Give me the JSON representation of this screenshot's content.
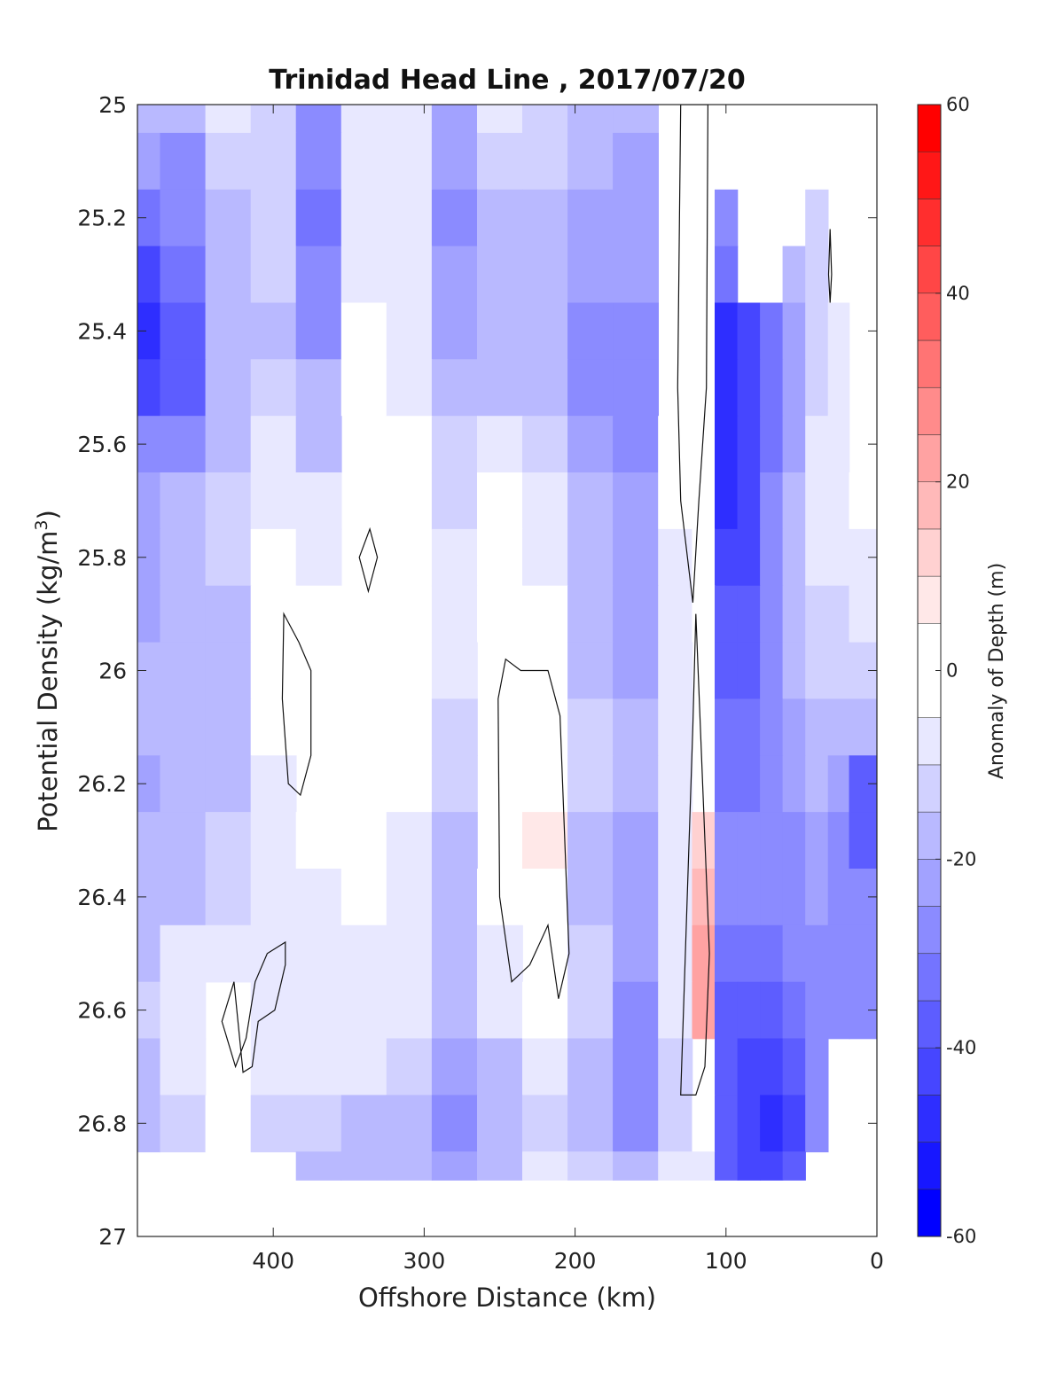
{
  "chart_data": {
    "type": "heatmap",
    "title": "Trinidad Head Line , 2017/07/20",
    "xlabel": "Offshore Distance (km)",
    "ylabel": "Potential Density (kg/m3)",
    "ylabel_main": "Potential Density (kg/m",
    "ylabel_sup": "3",
    "ylabel_close": ")",
    "xlim": [
      490,
      0
    ],
    "ylim": [
      25,
      27
    ],
    "y_reversed": true,
    "x_ticks": [
      400,
      300,
      200,
      100,
      0
    ],
    "x_tick_labels": [
      "400",
      "300",
      "200",
      "100",
      "0"
    ],
    "y_ticks": [
      25,
      25.2,
      25.4,
      25.6,
      25.8,
      26,
      26.2,
      26.4,
      26.6,
      26.8,
      27
    ],
    "y_tick_labels": [
      "25",
      "25.2",
      "25.4",
      "25.6",
      "25.8",
      "26",
      "26.2",
      "26.4",
      "26.6",
      "26.8",
      "27"
    ],
    "colorbar": {
      "label": "Anomaly of Depth (m)",
      "range": [
        -60,
        60
      ],
      "ticks": [
        60,
        40,
        20,
        0,
        -20,
        -40,
        -60
      ],
      "tick_labels": [
        "60",
        "40",
        "20",
        "0",
        "-20",
        "-40",
        "-60"
      ],
      "levels": [
        -60,
        -55,
        -50,
        -45,
        -40,
        -35,
        -30,
        -25,
        -20,
        -15,
        -10,
        -5,
        5,
        10,
        15,
        20,
        25,
        30,
        35,
        40,
        45,
        50,
        55,
        60
      ],
      "low_color": "#0000ff",
      "mid_color": "#ffffff",
      "high_color": "#ff0000"
    },
    "x": [
      490,
      460,
      430,
      400,
      370,
      340,
      310,
      280,
      250,
      220,
      190,
      160,
      130,
      115,
      100,
      85,
      70,
      55,
      40,
      25,
      12
    ],
    "y": [
      25,
      25.1,
      25.2,
      25.3,
      25.4,
      25.5,
      25.6,
      25.7,
      25.8,
      25.9,
      26,
      26.1,
      26.2,
      26.3,
      26.4,
      26.5,
      26.6,
      26.7,
      26.8,
      26.9
    ],
    "z": [
      [
        -20,
        -20,
        -10,
        -12,
        -28,
        -8,
        -5,
        -22,
        -10,
        -12,
        -18,
        -20,
        0,
        0,
        0,
        0,
        0,
        0,
        0,
        0,
        0
      ],
      [
        -25,
        -28,
        -12,
        -14,
        -30,
        -8,
        -6,
        -24,
        -12,
        -14,
        -20,
        -22,
        0,
        0,
        0,
        0,
        0,
        0,
        0,
        0,
        0
      ],
      [
        -32,
        -30,
        -16,
        -15,
        -32,
        -6,
        -8,
        -26,
        -16,
        -16,
        -22,
        -22,
        0,
        0,
        -30,
        0,
        0,
        0,
        -14,
        0,
        0
      ],
      [
        -42,
        -34,
        -20,
        -15,
        -28,
        -8,
        -10,
        -24,
        -18,
        -18,
        -24,
        -24,
        0,
        0,
        -32,
        0,
        0,
        -20,
        -14,
        0,
        0
      ],
      [
        -48,
        -38,
        -20,
        -16,
        -26,
        -4,
        -10,
        -22,
        -18,
        -18,
        -26,
        -26,
        0,
        0,
        -48,
        -42,
        -34,
        -22,
        -12,
        -8,
        0
      ],
      [
        -44,
        -36,
        -18,
        -12,
        -20,
        -2,
        -6,
        -18,
        -16,
        -18,
        -26,
        -26,
        0,
        0,
        -50,
        -44,
        -34,
        -22,
        -12,
        -8,
        0
      ],
      [
        -30,
        -26,
        -16,
        -10,
        -16,
        0,
        -2,
        -14,
        -10,
        -14,
        -24,
        -26,
        -2,
        0,
        -48,
        -44,
        -32,
        -22,
        -10,
        -8,
        0
      ],
      [
        -22,
        -20,
        -14,
        -6,
        -10,
        0,
        0,
        -12,
        -4,
        -8,
        -20,
        -22,
        -4,
        0,
        -46,
        -44,
        -30,
        -20,
        -10,
        -8,
        -4
      ],
      [
        -22,
        -20,
        -14,
        -4,
        -6,
        0,
        0,
        -10,
        -4,
        -6,
        -20,
        -22,
        -6,
        -2,
        -44,
        -42,
        -30,
        -20,
        -10,
        -10,
        -6
      ],
      [
        -22,
        -20,
        -16,
        -4,
        -4,
        0,
        0,
        -10,
        -2,
        -4,
        -18,
        -22,
        -6,
        -2,
        -40,
        -40,
        -30,
        -20,
        -12,
        -12,
        -8
      ],
      [
        -18,
        -20,
        -16,
        -4,
        0,
        0,
        0,
        -10,
        0,
        0,
        -16,
        -22,
        -6,
        0,
        -36,
        -36,
        -30,
        -20,
        -14,
        -14,
        -14
      ],
      [
        -20,
        -20,
        -16,
        -4,
        0,
        0,
        -2,
        -12,
        0,
        0,
        -14,
        -20,
        -6,
        0,
        -34,
        -34,
        -30,
        -22,
        -16,
        -18,
        -20
      ],
      [
        -22,
        -20,
        -16,
        -6,
        0,
        0,
        -4,
        -14,
        0,
        0,
        -14,
        -20,
        -6,
        0,
        -32,
        -32,
        -30,
        -24,
        -18,
        -24,
        -38
      ],
      [
        -20,
        -18,
        -14,
        -8,
        -4,
        0,
        -6,
        -16,
        0,
        6,
        -16,
        -22,
        -6,
        12,
        -30,
        -30,
        -28,
        -26,
        -22,
        -30,
        -38
      ],
      [
        -18,
        -16,
        -12,
        -10,
        -6,
        -4,
        -8,
        -18,
        -2,
        4,
        -16,
        -22,
        -8,
        18,
        -30,
        -30,
        -30,
        -28,
        -24,
        -30,
        -30
      ],
      [
        -16,
        -10,
        -6,
        -10,
        -8,
        -6,
        -8,
        -20,
        -6,
        0,
        -12,
        -24,
        -8,
        22,
        -32,
        -34,
        -34,
        -30,
        -26,
        -30,
        -30
      ],
      [
        -14,
        -8,
        0,
        -6,
        -6,
        -6,
        -10,
        -20,
        -10,
        -4,
        -14,
        -26,
        -10,
        22,
        -36,
        -40,
        -40,
        -34,
        -28,
        -28,
        -28
      ],
      [
        -16,
        -10,
        0,
        -8,
        -10,
        -10,
        -12,
        -22,
        -16,
        -10,
        -18,
        -26,
        -12,
        0,
        -40,
        -42,
        -44,
        -38,
        -30,
        0,
        0
      ],
      [
        -20,
        -12,
        -4,
        -14,
        -14,
        -16,
        -16,
        -26,
        -20,
        -12,
        -20,
        -26,
        -12,
        -4,
        -40,
        -44,
        -46,
        -42,
        -30,
        0,
        0
      ],
      [
        0,
        0,
        0,
        0,
        -16,
        -18,
        -20,
        -24,
        -18,
        -10,
        -14,
        -18,
        -10,
        -6,
        -38,
        -42,
        -44,
        -40,
        0,
        0,
        0
      ]
    ]
  }
}
